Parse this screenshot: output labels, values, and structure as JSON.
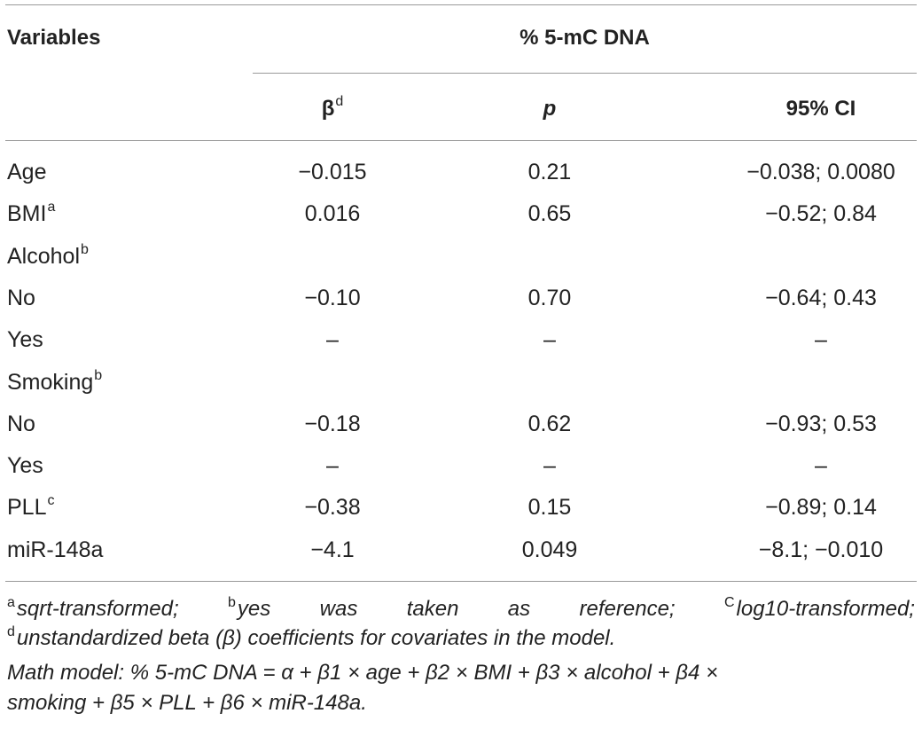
{
  "header": {
    "variables": "Variables",
    "group_title": "% 5-mC DNA",
    "col_beta": "β",
    "col_beta_sup": "d",
    "col_p": "p",
    "col_ci": "95% CI"
  },
  "rows": [
    {
      "label": "Age",
      "sup": "",
      "beta": "−0.015",
      "p": "0.21",
      "ci": "−0.038; 0.0080"
    },
    {
      "label": "BMI",
      "sup": "a",
      "beta": "0.016",
      "p": "0.65",
      "ci": "−0.52; 0.84"
    },
    {
      "label": "Alcohol",
      "sup": "b",
      "beta": "",
      "p": "",
      "ci": ""
    },
    {
      "label": "No",
      "sup": "",
      "beta": "−0.10",
      "p": "0.70",
      "ci": "−0.64; 0.43"
    },
    {
      "label": "Yes",
      "sup": "",
      "beta": "–",
      "p": "–",
      "ci": "–"
    },
    {
      "label": "Smoking",
      "sup": "b",
      "beta": "",
      "p": "",
      "ci": ""
    },
    {
      "label": "No",
      "sup": "",
      "beta": "−0.18",
      "p": "0.62",
      "ci": "−0.93; 0.53"
    },
    {
      "label": "Yes",
      "sup": "",
      "beta": "–",
      "p": "–",
      "ci": "–"
    },
    {
      "label": "PLL",
      "sup": "c",
      "beta": "−0.38",
      "p": "0.15",
      "ci": "−0.89; 0.14"
    },
    {
      "label": "miR-148a",
      "sup": "",
      "beta": "−4.1",
      "p": "0.049",
      "ci": "−8.1; −0.010"
    }
  ],
  "footnotes": {
    "a_sup": "a",
    "a_text": "sqrt-transformed;",
    "b_sup": "b",
    "b_text": [
      "yes",
      "was",
      "taken",
      "as",
      "reference;"
    ],
    "c_sup": "C",
    "c_text": "log10-transformed;",
    "d_sup": "d",
    "d_text": "unstandardized beta (β) coefficients for covariates in the model.",
    "math_line1": "Math model: % 5-mC DNA = α + β1 × age + β2 × BMI + β3 × alcohol + β4 ×",
    "math_line2": "smoking + β5 × PLL + β6 × miR-148a."
  }
}
